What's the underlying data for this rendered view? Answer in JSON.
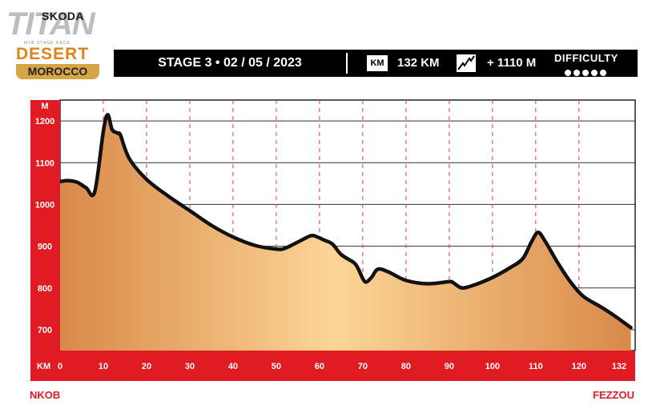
{
  "logo": {
    "brand": "SKODA",
    "titan": "TITAN",
    "tagline": "MTB STAGE RACE",
    "desert": "DESERT",
    "region": "MOROCCO"
  },
  "header": {
    "stage": "STAGE 3 • 02 / 05 / 2023",
    "km_badge": "KM",
    "distance": "132 KM",
    "elevation": "+ 1110 M",
    "difficulty_label": "DIFFICULTY",
    "difficulty_level": 5,
    "difficulty_max": 5
  },
  "locations": {
    "start": "NKOB",
    "finish": "FEZZOU"
  },
  "colors": {
    "axis_band": "#e01b24",
    "profile_line": "#111111",
    "fill_edge": "#d8894a",
    "fill_center": "#fcd595"
  },
  "chart_data": {
    "type": "area",
    "ylabel": "M",
    "xlabel": "KM",
    "ylim": [
      650,
      1250
    ],
    "yticks": [
      700,
      800,
      900,
      1000,
      1100,
      1200
    ],
    "xlim": [
      0,
      133
    ],
    "xticks": [
      0,
      10,
      20,
      30,
      40,
      50,
      60,
      70,
      80,
      90,
      100,
      110,
      120,
      132
    ],
    "grid_x": true,
    "grid_y": true,
    "x": [
      0,
      2,
      4,
      6,
      8,
      10,
      11,
      12,
      13,
      13.5,
      14,
      16,
      20,
      25,
      30,
      35,
      40,
      45,
      50,
      52,
      55,
      58,
      59.5,
      61,
      63,
      65,
      68,
      69,
      70.5,
      72,
      73.5,
      76,
      80,
      85,
      90,
      91,
      93,
      96,
      100,
      104,
      107,
      109,
      110.5,
      112,
      115,
      118,
      121,
      125,
      128,
      132
    ],
    "y": [
      1055,
      1057,
      1053,
      1040,
      1030,
      1175,
      1215,
      1180,
      1172,
      1170,
      1165,
      1110,
      1060,
      1020,
      985,
      950,
      922,
      902,
      893,
      895,
      910,
      925,
      922,
      915,
      905,
      880,
      860,
      845,
      815,
      825,
      845,
      838,
      818,
      810,
      815,
      812,
      800,
      808,
      825,
      848,
      870,
      910,
      933,
      915,
      862,
      815,
      780,
      755,
      735,
      705
    ]
  }
}
